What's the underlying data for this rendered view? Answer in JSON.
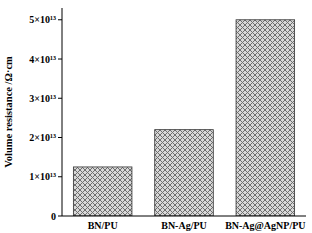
{
  "chart_data": {
    "type": "bar",
    "y_label": "Volume resistance /Ω·cm",
    "categories": [
      "BN/PU",
      "BN-Ag/PU",
      "BN-Ag@AgNP/PU"
    ],
    "values": [
      12500000000000.0,
      22000000000000.0,
      50000000000000.0
    ],
    "color": "#6e6e6e",
    "ylim": [
      0,
      53000000000000.0
    ],
    "yticks": [
      0,
      {
        "value": 10000000000000.0,
        "label": "1×10¹³"
      },
      {
        "value": 20000000000000.0,
        "label": "2×10¹³"
      },
      {
        "value": 30000000000000.0,
        "label": "3×10¹³"
      },
      {
        "value": 40000000000000.0,
        "label": "4×10¹³"
      },
      {
        "value": 50000000000000.0,
        "label": "5×10¹³"
      }
    ],
    "grid": false
  }
}
